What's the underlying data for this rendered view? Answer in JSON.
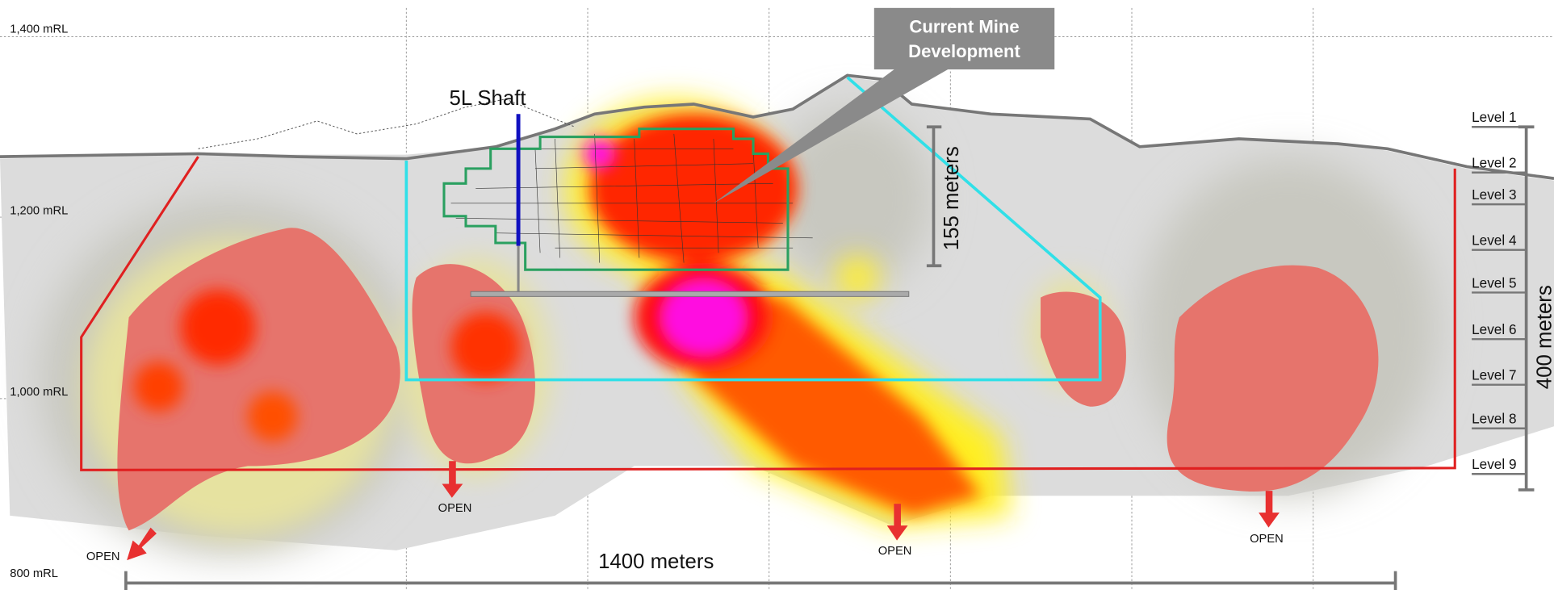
{
  "elevation_labels": [
    "1,400 mRL",
    "1,200 mRL",
    "1,000 mRL",
    "800 mRL"
  ],
  "shaft_label": "5L Shaft",
  "callout": [
    "Current Mine",
    "Development"
  ],
  "dimensions": {
    "development_depth": "155 meters",
    "total_depth": "400 meters",
    "strike_length": "1400 meters"
  },
  "levels": [
    "Level 1",
    "Level 2",
    "Level 3",
    "Level 4",
    "Level 5",
    "Level 6",
    "Level 7",
    "Level 8",
    "Level 9"
  ],
  "open_labels": [
    "OPEN",
    "OPEN",
    "OPEN",
    "OPEN"
  ]
}
